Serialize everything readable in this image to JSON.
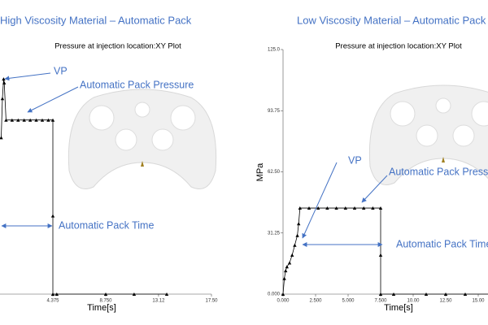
{
  "chart_data": [
    {
      "type": "line",
      "title": "High Viscosity Material – Automatic Pack",
      "subtitle": "Pressure at injection location:XY Plot",
      "xlabel": "Time[s]",
      "xlim": [
        0,
        17.5
      ],
      "ylim": [
        0,
        125
      ],
      "xticks": [
        4.375,
        {
          "value": 8.75,
          "label": "8.750"
        },
        13.12,
        {
          "value": 17.5,
          "label": "17.50"
        }
      ],
      "series": [
        {
          "name": "Pressure",
          "color": "#000000",
          "x": [
            0.1,
            0.2,
            0.3,
            0.35,
            0.5,
            1,
            1.5,
            2,
            2.5,
            3,
            3.5,
            4,
            4.375,
            4.375,
            4.375,
            4.7,
            8.75,
            11.1,
            13.8
          ],
          "values": [
            80,
            100,
            110,
            108,
            89,
            89,
            89,
            89,
            89,
            89,
            89,
            89,
            89,
            40,
            0,
            0,
            0,
            0,
            0
          ]
        }
      ],
      "annotations": [
        "VP",
        "Automatic Pack Pressure",
        "Automatic Pack Time"
      ]
    },
    {
      "type": "line",
      "title": "Low Viscosity Material – Automatic Pack",
      "subtitle": "Pressure at injection location:XY Plot",
      "xlabel": "Time[s]",
      "ylabel": "MPa",
      "xlim": [
        0,
        17.5
      ],
      "ylim": [
        0,
        125
      ],
      "xticks": [
        {
          "value": 0,
          "label": "0.000"
        },
        {
          "value": 2.5,
          "label": "2.500"
        },
        {
          "value": 5,
          "label": "5.000"
        },
        {
          "value": 7.5,
          "label": "7.500"
        },
        {
          "value": 10,
          "label": "10.00"
        },
        {
          "value": 12.5,
          "label": "12.50"
        },
        {
          "value": 15,
          "label": "15.00"
        }
      ],
      "yticks": [
        {
          "value": 0,
          "label": "0.000"
        },
        31.25,
        {
          "value": 62.5,
          "label": "62.50"
        },
        93.75,
        {
          "value": 125,
          "label": "125.0"
        }
      ],
      "series": [
        {
          "name": "Pressure",
          "color": "#000000",
          "x": [
            0,
            0.1,
            0.2,
            0.3,
            0.5,
            0.7,
            0.9,
            1.1,
            1.2,
            1.3,
            2,
            2.7,
            3.4,
            4.1,
            4.8,
            5.5,
            6.2,
            6.9,
            7.5,
            7.5,
            7.5,
            8.5,
            11,
            12.5,
            14,
            16
          ],
          "values": [
            0,
            8,
            12,
            14,
            16,
            20,
            25,
            30,
            36,
            44,
            44,
            44,
            44,
            44,
            44,
            44,
            44,
            44,
            44,
            20,
            0,
            0,
            0,
            0,
            0,
            0
          ]
        }
      ],
      "annotations": [
        "VP",
        "Automatic Pack Pressure",
        "Automatic Pack Time"
      ]
    }
  ]
}
